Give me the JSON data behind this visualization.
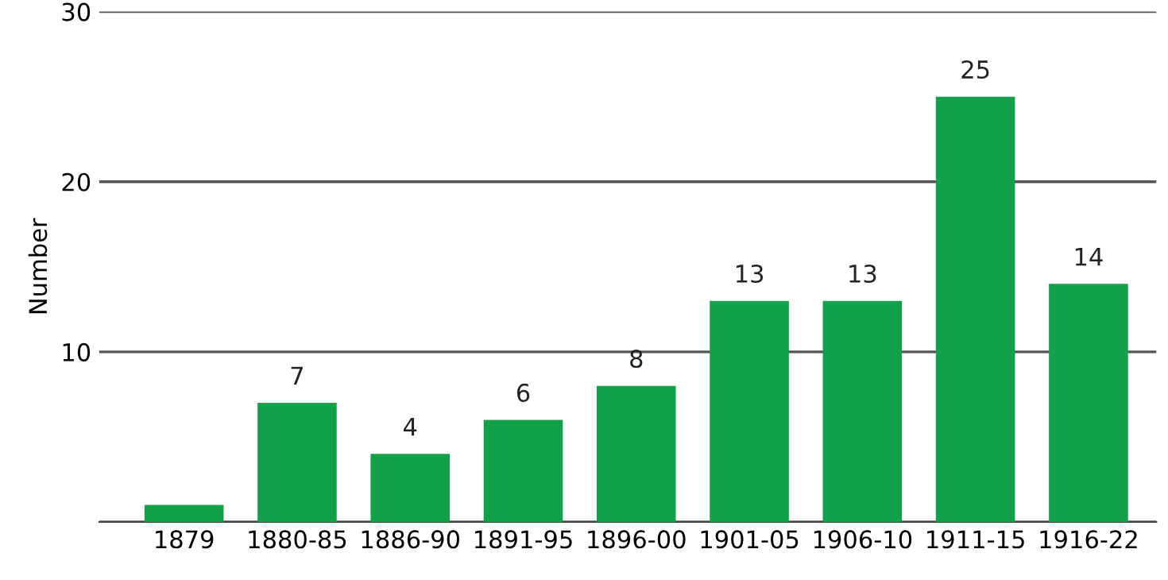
{
  "chart_data": {
    "type": "bar",
    "ylabel": "Number",
    "categories": [
      "1879",
      "1880-85",
      "1886-90",
      "1891-95",
      "1896-00",
      "1901-05",
      "1906-10",
      "1911-15",
      "1916-22"
    ],
    "values": [
      1,
      7,
      4,
      6,
      8,
      13,
      13,
      25,
      14
    ],
    "value_labels": [
      null,
      "7",
      "4",
      "6",
      "8",
      "13",
      "13",
      "25",
      "14"
    ],
    "color": "#13a04b",
    "ylim": [
      0,
      30
    ],
    "yticks": [
      {
        "value": 0,
        "label": null
      },
      10,
      20,
      30
    ],
    "grid": "y"
  }
}
